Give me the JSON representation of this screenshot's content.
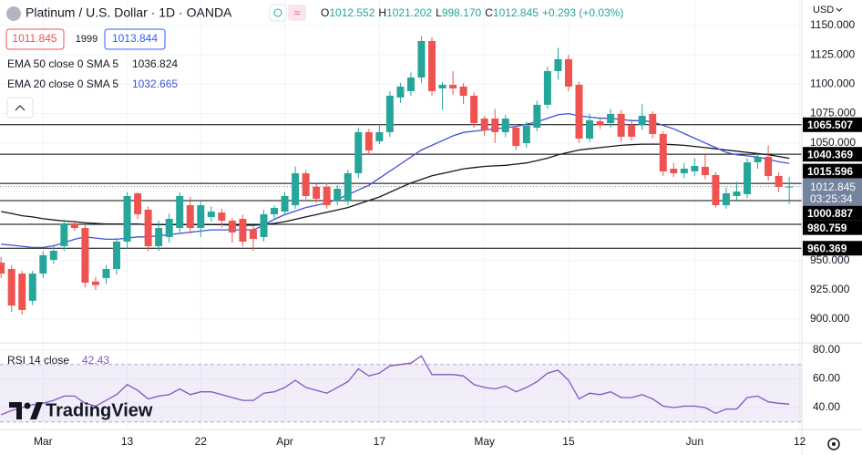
{
  "header": {
    "symbol": "Platinum / U.S. Dollar · 1D · OANDA",
    "ohlc": [
      {
        "key": "O",
        "value": "1012.552"
      },
      {
        "key": "H",
        "value": "1021.202"
      },
      {
        "key": "L",
        "value": "998.170"
      },
      {
        "key": "C",
        "value": "1012.845"
      }
    ],
    "change": "+0.293 (+0.03%)",
    "sell": "1011.845",
    "spread": "1999",
    "buy": "1013.844"
  },
  "watermark": "TradingView",
  "chart_data": {
    "type": "candlestick",
    "currency": "USD",
    "up_color": "#26a69a",
    "down_color": "#ef5350",
    "grid": true,
    "xlim": [
      -0.1,
      76.2
    ],
    "xticks": [
      {
        "value": 4,
        "label": "Mar"
      },
      {
        "value": 12,
        "label": "13"
      },
      {
        "value": 19,
        "label": "22"
      },
      {
        "value": 27,
        "label": "Apr"
      },
      {
        "value": 36,
        "label": "17"
      },
      {
        "value": 46,
        "label": "May"
      },
      {
        "value": 54,
        "label": "15"
      },
      {
        "value": 66,
        "label": "Jun"
      },
      {
        "value": 76,
        "label": "12"
      }
    ],
    "ylim": [
      880.6,
      1171.7
    ],
    "yticks": [
      {
        "value": 1150,
        "label": "1150.000"
      },
      {
        "value": 1125,
        "label": "1125.000"
      },
      {
        "value": 1100,
        "label": "1100.000"
      },
      {
        "value": 1075,
        "label": "1075.000"
      },
      {
        "value": 1050,
        "label": "1050.000"
      },
      {
        "value": 950,
        "label": "950.000"
      },
      {
        "value": 925,
        "label": "925.000"
      },
      {
        "value": 900,
        "label": "900.000"
      }
    ],
    "open": [
      948.1,
      942.7,
      938.8,
      915.6,
      938.8,
      950.5,
      962.1,
      981.5,
      977.6,
      932,
      935.0,
      942.7,
      966.0,
      1007.1,
      993.2,
      962.1,
      969.9,
      977.6,
      997.0,
      977.6,
      986.9,
      990.8,
      983.8,
      985.4,
      976.1,
      969.9,
      989.3,
      991.6,
      997.0,
      1024.2,
      1012.6,
      1012.6,
      1000.9,
      1000.9,
      1024.2,
      1059.2,
      1051.4,
      1059.2,
      1088.7,
      1094.1,
      1105.7,
      1136.8,
      1096.4,
      1099.5,
      1098.0,
      1090.2,
      1070.8,
      1070.8,
      1059.2,
      1063.0,
      1049.8,
      1063.0,
      1082.5,
      1111.2,
      1121.3,
      1099.5,
      1053.7,
      1068.5,
      1066.9,
      1074.7,
      1065.4,
      1065.4,
      1074.7,
      1057.6,
      1028.1,
      1024.2,
      1025.8,
      1029.7,
      1022.7,
      997.0,
      1004.8,
      1006.4,
      1033.5,
      1038.2,
      1021.9,
      1012.552
    ],
    "high": [
      953,
      946,
      941,
      941,
      958,
      962,
      985,
      984,
      980,
      936,
      946,
      969,
      1008,
      1008,
      996,
      984,
      990,
      1008,
      1004,
      1000,
      996,
      994,
      986,
      989,
      980,
      993,
      997,
      1008,
      1030,
      1027,
      1015,
      1016,
      1014,
      1027,
      1063,
      1062,
      1066,
      1094,
      1101,
      1110,
      1141,
      1140,
      1102,
      1111,
      1101,
      1093,
      1073,
      1079,
      1074,
      1066,
      1068,
      1086,
      1115,
      1131,
      1125,
      1102,
      1075,
      1072,
      1079,
      1078,
      1070,
      1083,
      1077,
      1060,
      1033,
      1033,
      1037,
      1040,
      1025,
      1012,
      1017,
      1037,
      1041,
      1048,
      1025,
      1021.202
    ],
    "low": [
      935,
      906,
      903.9,
      912,
      935,
      947,
      958,
      975,
      927,
      925,
      930,
      938,
      960,
      985,
      958,
      958,
      965,
      973,
      973,
      970,
      983,
      978,
      965,
      962,
      958,
      966,
      985,
      989,
      994,
      1002,
      999,
      994,
      997,
      997,
      1020,
      1040,
      1049,
      1055,
      1084,
      1090,
      1101,
      1090,
      1078,
      1091,
      1083,
      1063,
      1056,
      1050,
      1055,
      1044,
      1046,
      1060,
      1079,
      1104,
      1094,
      1050,
      1051,
      1062,
      1063,
      1051,
      1052,
      1061,
      1054,
      1022,
      1021,
      1020,
      1022,
      1019,
      995,
      994,
      1001,
      1003,
      1028,
      1018,
      1008,
      998.17
    ],
    "close": [
      938.8,
      911.6,
      907.8,
      938.8,
      954.4,
      958.2,
      981.5,
      977.6,
      931.1,
      929,
      942.7,
      966.0,
      1004.8,
      989.3,
      962.1,
      977.6,
      985.4,
      1004.8,
      977.6,
      997.0,
      991.6,
      983.8,
      973.8,
      966.0,
      968.3,
      989.3,
      994.7,
      1004.8,
      1024.2,
      1004.8,
      1002.5,
      997.0,
      1011.0,
      1024.2,
      1059.2,
      1043.6,
      1059.2,
      1090.2,
      1098.0,
      1105.7,
      1136.8,
      1094.1,
      1099.5,
      1096.4,
      1090.2,
      1066.9,
      1060.7,
      1059.2,
      1070.8,
      1047.5,
      1064.6,
      1082.5,
      1111.2,
      1121.3,
      1098.0,
      1053.7,
      1069.3,
      1065.4,
      1074.7,
      1055.3,
      1055.3,
      1073.1,
      1057.6,
      1025.8,
      1024.2,
      1028.1,
      1030.4,
      1022.7,
      997.0,
      1007.1,
      1008.7,
      1033.5,
      1038.2,
      1021.9,
      1012.6,
      1012.845
    ],
    "last_price_color": "#74839e",
    "countdown": "03:25:34",
    "levels": [
      1065.507,
      1040.369,
      1015.596,
      1000.887,
      980.759,
      960.369
    ],
    "level_color": "#000000",
    "indicators": [
      {
        "name": "EMA 50 close 0 SMA 5",
        "color": "#131722",
        "values": [
          991.6,
          990,
          988,
          987,
          985.5,
          984.5,
          983.5,
          983,
          982,
          981.5,
          981,
          981,
          981,
          981,
          980.5,
          980.5,
          980.5,
          980.5,
          980.5,
          980.5,
          980.5,
          980.5,
          980,
          980,
          980,
          980.5,
          981.5,
          983,
          985,
          987,
          989,
          991,
          993,
          995,
          998,
          1001,
          1004,
          1008,
          1012,
          1016,
          1019,
          1022,
          1024,
          1026,
          1028,
          1029,
          1030,
          1030.5,
          1031,
          1032,
          1033,
          1035,
          1037,
          1040,
          1042,
          1044,
          1045,
          1046,
          1047,
          1048,
          1048.5,
          1049,
          1049,
          1049,
          1048.5,
          1048,
          1047,
          1046,
          1045,
          1044,
          1043,
          1042,
          1041,
          1040,
          1038.5,
          1036.824
        ]
      },
      {
        "name": "EMA 20 close 0 SMA 5",
        "color": "#3f51d6",
        "values": [
          963.7,
          963,
          962,
          961,
          961,
          962.5,
          965,
          968,
          970,
          969,
          968,
          968,
          969,
          970,
          970,
          971,
          972,
          973,
          974,
          975,
          976,
          976,
          976,
          976,
          976,
          980,
          985,
          989,
          992,
          995,
          997,
          999,
          1002,
          1006,
          1010,
          1014,
          1020,
          1026,
          1032,
          1038,
          1044,
          1048,
          1052,
          1056,
          1059,
          1060,
          1061,
          1062,
          1063,
          1064,
          1066,
          1068,
          1071,
          1074,
          1075,
          1073,
          1072,
          1071,
          1071,
          1070,
          1069,
          1069,
          1068,
          1065,
          1062,
          1058,
          1054,
          1050,
          1046,
          1042,
          1040,
          1039,
          1038,
          1036,
          1034,
          1032.665
        ]
      }
    ],
    "rsi": {
      "name": "RSI 14 close",
      "color": "#7e57c2",
      "band": [
        30,
        70
      ],
      "ylim": [
        25.4,
        83.8
      ],
      "yticks": [
        {
          "value": 80,
          "label": "80.00"
        },
        {
          "value": 60,
          "label": "60.00"
        },
        {
          "value": 40,
          "label": "40.00"
        }
      ],
      "values": [
        35,
        38,
        40,
        42,
        43,
        45,
        48,
        48,
        43,
        41,
        45,
        49,
        56,
        52,
        46,
        48,
        49,
        53,
        49,
        51,
        51,
        49,
        47,
        45,
        45,
        50,
        51,
        54,
        59,
        54,
        52,
        50,
        54,
        58,
        67,
        62,
        64,
        69,
        70,
        71,
        76,
        63,
        63,
        63,
        62,
        56,
        54,
        53,
        55,
        51,
        54,
        58,
        64,
        66,
        59,
        46,
        50,
        49,
        51,
        47,
        47,
        49,
        46,
        41,
        40,
        41,
        41,
        40,
        36,
        39,
        39,
        47,
        48,
        44,
        43,
        42.43
      ]
    }
  }
}
